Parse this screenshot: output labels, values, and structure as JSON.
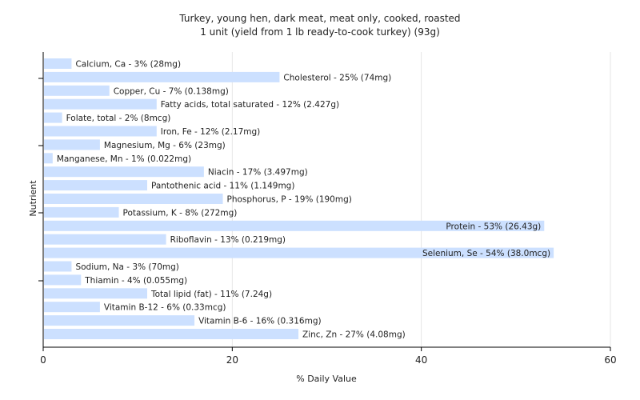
{
  "chart_data": {
    "type": "bar",
    "orientation": "horizontal",
    "title": "Turkey, young hen, dark meat, meat only, cooked, roasted",
    "subtitle": "1 unit (yield from 1 lb ready-to-cook turkey) (93g)",
    "xlabel": "% Daily Value",
    "ylabel": "Nutrient",
    "xlim": [
      0,
      60
    ],
    "xticks": [
      0,
      20,
      40,
      60
    ],
    "grid": true,
    "bar_color": "#cce0ff",
    "categories": [
      "Calcium, Ca",
      "Cholesterol",
      "Copper, Cu",
      "Fatty acids, total saturated",
      "Folate, total",
      "Iron, Fe",
      "Magnesium, Mg",
      "Manganese, Mn",
      "Niacin",
      "Pantothenic acid",
      "Phosphorus, P",
      "Potassium, K",
      "Protein",
      "Riboflavin",
      "Selenium, Se",
      "Sodium, Na",
      "Thiamin",
      "Total lipid (fat)",
      "Vitamin B-12",
      "Vitamin B-6",
      "Zinc, Zn"
    ],
    "values": [
      3,
      25,
      7,
      12,
      2,
      12,
      6,
      1,
      17,
      11,
      19,
      8,
      53,
      13,
      54,
      3,
      4,
      11,
      6,
      16,
      27
    ],
    "labels": [
      "Calcium, Ca - 3% (28mg)",
      "Cholesterol - 25% (74mg)",
      "Copper, Cu - 7% (0.138mg)",
      "Fatty acids, total saturated - 12% (2.427g)",
      "Folate, total - 2% (8mcg)",
      "Iron, Fe - 12% (2.17mg)",
      "Magnesium, Mg - 6% (23mg)",
      "Manganese, Mn - 1% (0.022mg)",
      "Niacin - 17% (3.497mg)",
      "Pantothenic acid - 11% (1.149mg)",
      "Phosphorus, P - 19% (190mg)",
      "Potassium, K - 8% (272mg)",
      "Protein - 53% (26.43g)",
      "Riboflavin - 13% (0.219mg)",
      "Selenium, Se - 54% (38.0mcg)",
      "Sodium, Na - 3% (70mg)",
      "Thiamin - 4% (0.055mg)",
      "Total lipid (fat) - 11% (7.24g)",
      "Vitamin B-12 - 6% (0.33mcg)",
      "Vitamin B-6 - 16% (0.316mg)",
      "Zinc, Zn - 27% (4.08mg)"
    ]
  }
}
